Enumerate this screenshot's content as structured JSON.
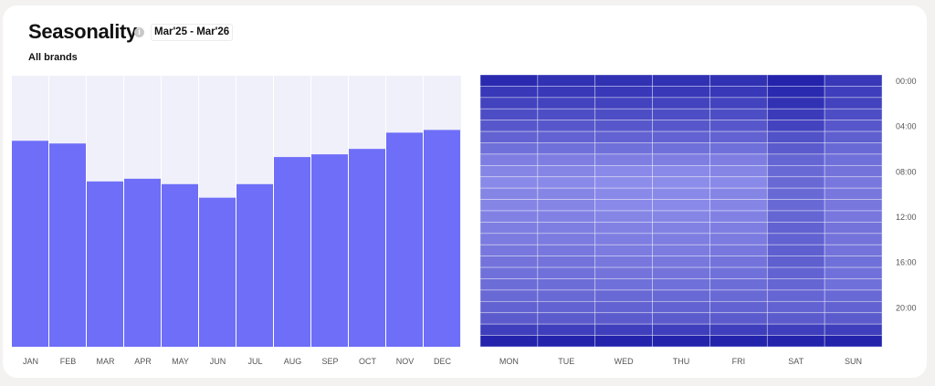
{
  "header": {
    "title": "Seasonality",
    "info_icon": "info-icon",
    "date_range": "Mar'25 - Mar'26",
    "subtitle": "All brands"
  },
  "chart_data": [
    {
      "type": "bar",
      "categories": [
        "JAN",
        "FEB",
        "MAR",
        "APR",
        "MAY",
        "JUN",
        "JUL",
        "AUG",
        "SEP",
        "OCT",
        "NOV",
        "DEC"
      ],
      "values": [
        76,
        75,
        61,
        62,
        60,
        55,
        60,
        70,
        71,
        73,
        79,
        80
      ],
      "ylim": [
        0,
        100
      ],
      "bar_color": "#6e6ef8",
      "background_color": "#f0f0fb",
      "grid": false
    },
    {
      "type": "heatmap",
      "x_categories": [
        "MON",
        "TUE",
        "WED",
        "THU",
        "FRI",
        "SAT",
        "SUN"
      ],
      "y_ticks": [
        "00:00",
        "04:00",
        "08:00",
        "12:00",
        "16:00",
        "20:00"
      ],
      "y_tick_hours": [
        0,
        4,
        8,
        12,
        16,
        20
      ],
      "rows": 24,
      "values": [
        [
          0.9,
          0.85,
          0.85,
          0.85,
          0.85,
          0.95,
          0.8
        ],
        [
          0.8,
          0.8,
          0.8,
          0.8,
          0.8,
          0.9,
          0.75
        ],
        [
          0.72,
          0.72,
          0.72,
          0.72,
          0.72,
          0.85,
          0.72
        ],
        [
          0.65,
          0.65,
          0.65,
          0.65,
          0.65,
          0.78,
          0.65
        ],
        [
          0.58,
          0.58,
          0.58,
          0.58,
          0.58,
          0.72,
          0.58
        ],
        [
          0.5,
          0.5,
          0.5,
          0.5,
          0.5,
          0.62,
          0.52
        ],
        [
          0.4,
          0.4,
          0.4,
          0.4,
          0.4,
          0.55,
          0.45
        ],
        [
          0.3,
          0.3,
          0.3,
          0.3,
          0.3,
          0.48,
          0.4
        ],
        [
          0.25,
          0.25,
          0.22,
          0.22,
          0.25,
          0.45,
          0.38
        ],
        [
          0.22,
          0.22,
          0.2,
          0.2,
          0.22,
          0.45,
          0.35
        ],
        [
          0.25,
          0.25,
          0.22,
          0.22,
          0.25,
          0.45,
          0.35
        ],
        [
          0.25,
          0.25,
          0.22,
          0.22,
          0.25,
          0.45,
          0.35
        ],
        [
          0.28,
          0.28,
          0.25,
          0.25,
          0.28,
          0.48,
          0.35
        ],
        [
          0.3,
          0.3,
          0.28,
          0.28,
          0.3,
          0.5,
          0.38
        ],
        [
          0.32,
          0.32,
          0.3,
          0.3,
          0.32,
          0.5,
          0.38
        ],
        [
          0.35,
          0.35,
          0.32,
          0.32,
          0.35,
          0.52,
          0.38
        ],
        [
          0.38,
          0.38,
          0.35,
          0.35,
          0.38,
          0.52,
          0.4
        ],
        [
          0.4,
          0.4,
          0.38,
          0.38,
          0.4,
          0.5,
          0.4
        ],
        [
          0.42,
          0.42,
          0.4,
          0.4,
          0.42,
          0.48,
          0.4
        ],
        [
          0.45,
          0.45,
          0.45,
          0.45,
          0.45,
          0.48,
          0.45
        ],
        [
          0.5,
          0.5,
          0.5,
          0.5,
          0.5,
          0.5,
          0.5
        ],
        [
          0.55,
          0.55,
          0.55,
          0.55,
          0.55,
          0.55,
          0.55
        ],
        [
          0.75,
          0.75,
          0.75,
          0.75,
          0.75,
          0.75,
          0.75
        ],
        [
          0.95,
          0.95,
          0.95,
          0.95,
          0.95,
          0.95,
          0.95
        ]
      ],
      "color_low": "#a8a8fb",
      "color_high": "#1c1ca8",
      "grid": true
    }
  ]
}
